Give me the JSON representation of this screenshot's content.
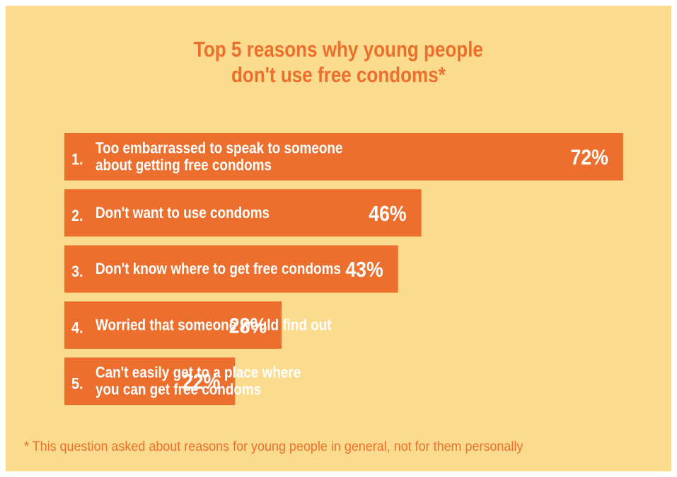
{
  "chart_data": {
    "type": "bar",
    "orientation": "horizontal",
    "title_lines": [
      "Top 5 reasons why young people",
      "don't use free condoms*"
    ],
    "bars": [
      {
        "number": "1.",
        "lines": [
          "Too embarrassed to speak to someone",
          "about getting free condoms"
        ],
        "value": 72,
        "value_label": "72%"
      },
      {
        "number": "2.",
        "lines": [
          "Don't want to use condoms"
        ],
        "value": 46,
        "value_label": "46%"
      },
      {
        "number": "3.",
        "lines": [
          "Don't know where to get free condoms"
        ],
        "value": 43,
        "value_label": "43%"
      },
      {
        "number": "4.",
        "lines": [
          "Worried that someone would find out"
        ],
        "value": 28,
        "value_label": "28%"
      },
      {
        "number": "5.",
        "lines": [
          "Can't easily get to a place where",
          "you can get free condoms"
        ],
        "value": 22,
        "value_label": "22%"
      }
    ],
    "xlim": [
      0,
      72
    ],
    "grid": false,
    "footnote": "* This question asked about reasons for young people in general, not for them personally"
  },
  "colors": {
    "background": "#fbdc8e",
    "bar": "#ec6f2d",
    "title": "#ec6f2d",
    "bar_text": "#ffffff",
    "footnote": "#ec6f2d"
  }
}
